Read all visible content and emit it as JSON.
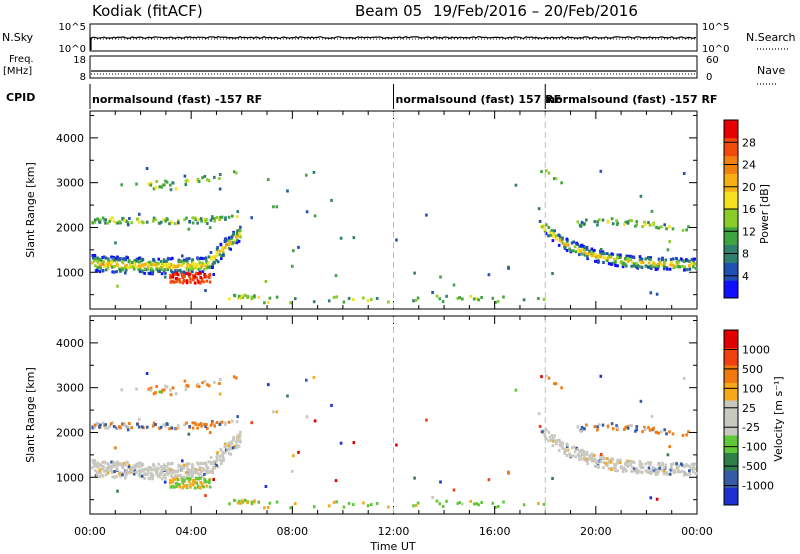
{
  "header": {
    "radar": "Kodiak (fitACF)",
    "beam": "Beam 05",
    "date_range": "19/Feb/2016 – 20/Feb/2016"
  },
  "strip_panels": {
    "nsky": {
      "left_label": "N.Sky",
      "right_label": "N.Search",
      "left_ticks": [
        "10^5",
        "10^0"
      ],
      "right_ticks": [
        "10^5",
        "10^0"
      ]
    },
    "freq": {
      "left_label_1": "Freq.",
      "left_label_2": "[MHz]",
      "right_label": "Nave",
      "left_ticks": [
        "18",
        "8"
      ],
      "right_ticks": [
        "60",
        "0"
      ]
    },
    "cpid": {
      "label": "CPID",
      "segments": [
        {
          "label": "normalsound (fast) -157 RF",
          "start_hr": 0
        },
        {
          "label": "normalsound (fast) 157 RF",
          "start_hr": 12
        },
        {
          "label": "normalsound (fast) -157 RF",
          "start_hr": 18
        }
      ]
    }
  },
  "chart_data": [
    {
      "type": "heatmap",
      "name": "power",
      "ylabel": "Slant Range [km]",
      "y_ticks": [
        1000,
        2000,
        3000,
        4000
      ],
      "ylim": [
        180,
        4600
      ],
      "xlim_hours": [
        0,
        24
      ],
      "colorbar": {
        "label": "Power [dB]",
        "ticks": [
          4,
          8,
          12,
          16,
          20,
          24,
          28
        ],
        "range": [
          0,
          32
        ],
        "colors": [
          "#1010ff",
          "#2050b0",
          "#2f7f6f",
          "#3fa340",
          "#8acc2a",
          "#f3e21d",
          "#f6b013",
          "#f08010",
          "#f04b0b",
          "#e60000"
        ]
      }
    },
    {
      "type": "heatmap",
      "name": "velocity",
      "ylabel": "Slant Range [km]",
      "y_ticks": [
        1000,
        2000,
        3000,
        4000
      ],
      "ylim": [
        180,
        4600
      ],
      "xlim_hours": [
        0,
        24
      ],
      "colorbar": {
        "label": "Velocity [m s⁻¹]",
        "ticks": [
          "1000",
          "500",
          "100",
          "25",
          "-25",
          "-100",
          "-500",
          "-1000"
        ],
        "colors": [
          "#1f2fd0",
          "#355aa6",
          "#2f7f4a",
          "#5fc838",
          "#c8c8c0",
          "#c8c8c0",
          "#f5a81a",
          "#f07a10",
          "#f04010",
          "#e00000"
        ]
      }
    }
  ],
  "x_axis": {
    "label": "Time UT",
    "ticks": [
      "00:00",
      "04:00",
      "08:00",
      "12:00",
      "16:00",
      "20:00",
      "00:00"
    ],
    "tick_hours": [
      0,
      4,
      8,
      12,
      16,
      20,
      24
    ]
  },
  "markers": {
    "dashed_hours": [
      12,
      18
    ]
  }
}
